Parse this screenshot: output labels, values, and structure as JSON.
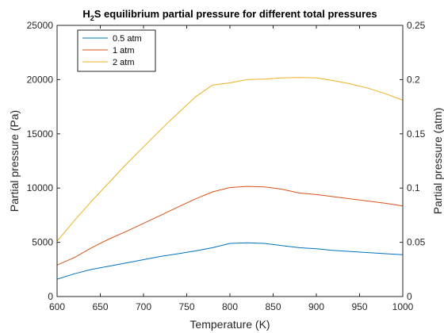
{
  "chart_data": {
    "type": "line",
    "title_main": "H",
    "title_sub": "2",
    "title_rest": "S equilibrium partial pressure for different total pressures",
    "xlabel": "Temperature (K)",
    "ylabel": "Partial pressure (Pa)",
    "ylabel_right": "Partial pressure (atm)",
    "xlim": [
      600,
      1000
    ],
    "ylim": [
      0,
      25000
    ],
    "ylim_right": [
      0,
      0.25
    ],
    "xticks": [
      "600",
      "650",
      "700",
      "750",
      "800",
      "850",
      "900",
      "950",
      "1000"
    ],
    "yticks": [
      "0",
      "5000",
      "10000",
      "15000",
      "20000",
      "25000"
    ],
    "yticks_right": [
      "0",
      "0.05",
      "0.1",
      "0.15",
      "0.2",
      "0.25"
    ],
    "grid": false,
    "legend_position": "top-left",
    "x": [
      600,
      620,
      640,
      660,
      680,
      700,
      720,
      740,
      760,
      780,
      800,
      820,
      840,
      860,
      880,
      900,
      920,
      940,
      960,
      980,
      1000
    ],
    "series": [
      {
        "name": "0.5 atm",
        "color": "#0072BD",
        "values": [
          1600,
          2100,
          2500,
          2800,
          3100,
          3400,
          3700,
          3950,
          4200,
          4500,
          4900,
          4950,
          4900,
          4700,
          4500,
          4400,
          4250,
          4150,
          4050,
          3950,
          3850
        ]
      },
      {
        "name": "1  atm",
        "color": "#D95319",
        "values": [
          2900,
          3600,
          4500,
          5300,
          6000,
          6750,
          7500,
          8250,
          9000,
          9650,
          10050,
          10150,
          10100,
          9900,
          9550,
          9400,
          9200,
          9000,
          8800,
          8600,
          8350
        ]
      },
      {
        "name": "2  atm",
        "color": "#EDB120",
        "values": [
          5100,
          7000,
          8800,
          10500,
          12200,
          13800,
          15400,
          16900,
          18400,
          19500,
          19700,
          20000,
          20050,
          20150,
          20200,
          20150,
          19900,
          19600,
          19200,
          18700,
          18100
        ]
      }
    ]
  }
}
